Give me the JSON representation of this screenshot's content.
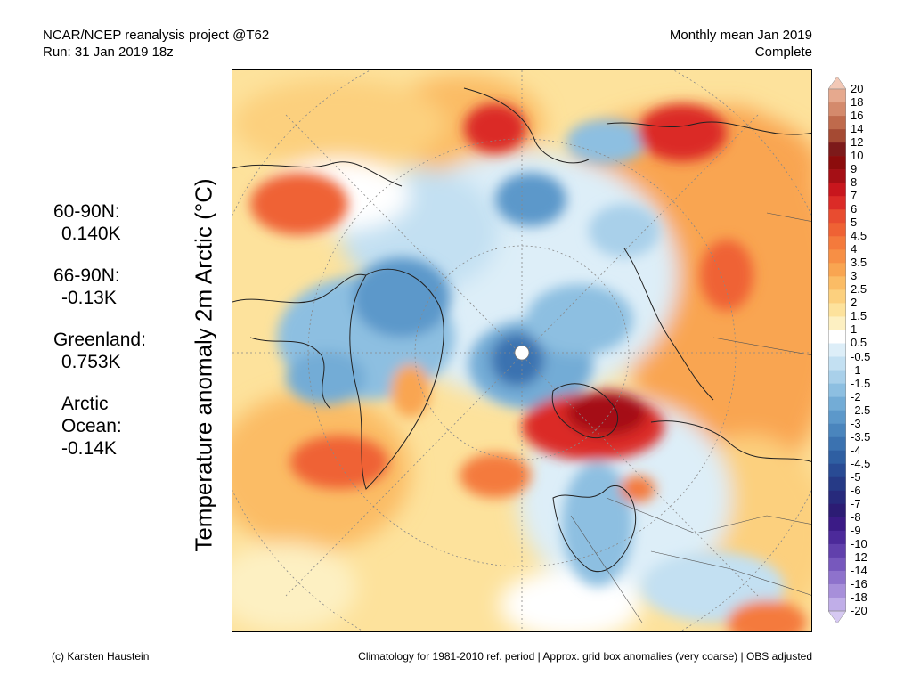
{
  "header": {
    "line1_left": "NCAR/NCEP reanalysis project @T62",
    "line2_left": "Run: 31 Jan 2019 18z",
    "line1_right": "Monthly mean Jan 2019",
    "line2_right": "Complete"
  },
  "y_axis_title": "Temperature anomaly 2m Arctic (°C)",
  "stats": [
    {
      "label": "60-90N:",
      "value": "0.140K"
    },
    {
      "label": "66-90N:",
      "value": "-0.13K"
    },
    {
      "label": "Greenland:",
      "value": "0.753K"
    },
    {
      "label": "Arctic",
      "label2": "Ocean:",
      "value": "-0.14K"
    }
  ],
  "colorbar": {
    "labels": [
      "20",
      "18",
      "16",
      "14",
      "12",
      "10",
      "9",
      "8",
      "7",
      "6",
      "5",
      "4.5",
      "4",
      "3.5",
      "3",
      "2.5",
      "2",
      "1.5",
      "1",
      "0.5",
      "-0.5",
      "-1",
      "-1.5",
      "-2",
      "-2.5",
      "-3",
      "-3.5",
      "-4",
      "-4.5",
      "-5",
      "-6",
      "-7",
      "-8",
      "-9",
      "-10",
      "-12",
      "-14",
      "-16",
      "-18",
      "-20"
    ],
    "colors": [
      "#f2c8b6",
      "#e6a98e",
      "#d48a6c",
      "#bf6a4c",
      "#a54a33",
      "#7d1a1a",
      "#8c0c0c",
      "#a50f15",
      "#c8161d",
      "#db2b27",
      "#e84c30",
      "#ef6234",
      "#f47a3c",
      "#f78f45",
      "#f9a551",
      "#fbbc65",
      "#fcd07e",
      "#fde29c",
      "#fdf0c2",
      "#ffffff",
      "#ddeef8",
      "#c3e0f2",
      "#a9d0ea",
      "#8dbfe1",
      "#73acd6",
      "#5c98ca",
      "#4a85bd",
      "#3b72b0",
      "#2f5fa2",
      "#294b94",
      "#263a86",
      "#272a7c",
      "#2c1c74",
      "#3b1b86",
      "#4c2a9a",
      "#6140ac",
      "#7758bd",
      "#8e72cc",
      "#a78fda",
      "#c0aee8",
      "#d6c9f2"
    ]
  },
  "footer": {
    "left": "(c) Karsten Haustein",
    "right": "Climatology for 1981-2010 ref. period | Approx. grid box anomalies (very coarse) | OBS adjusted"
  }
}
